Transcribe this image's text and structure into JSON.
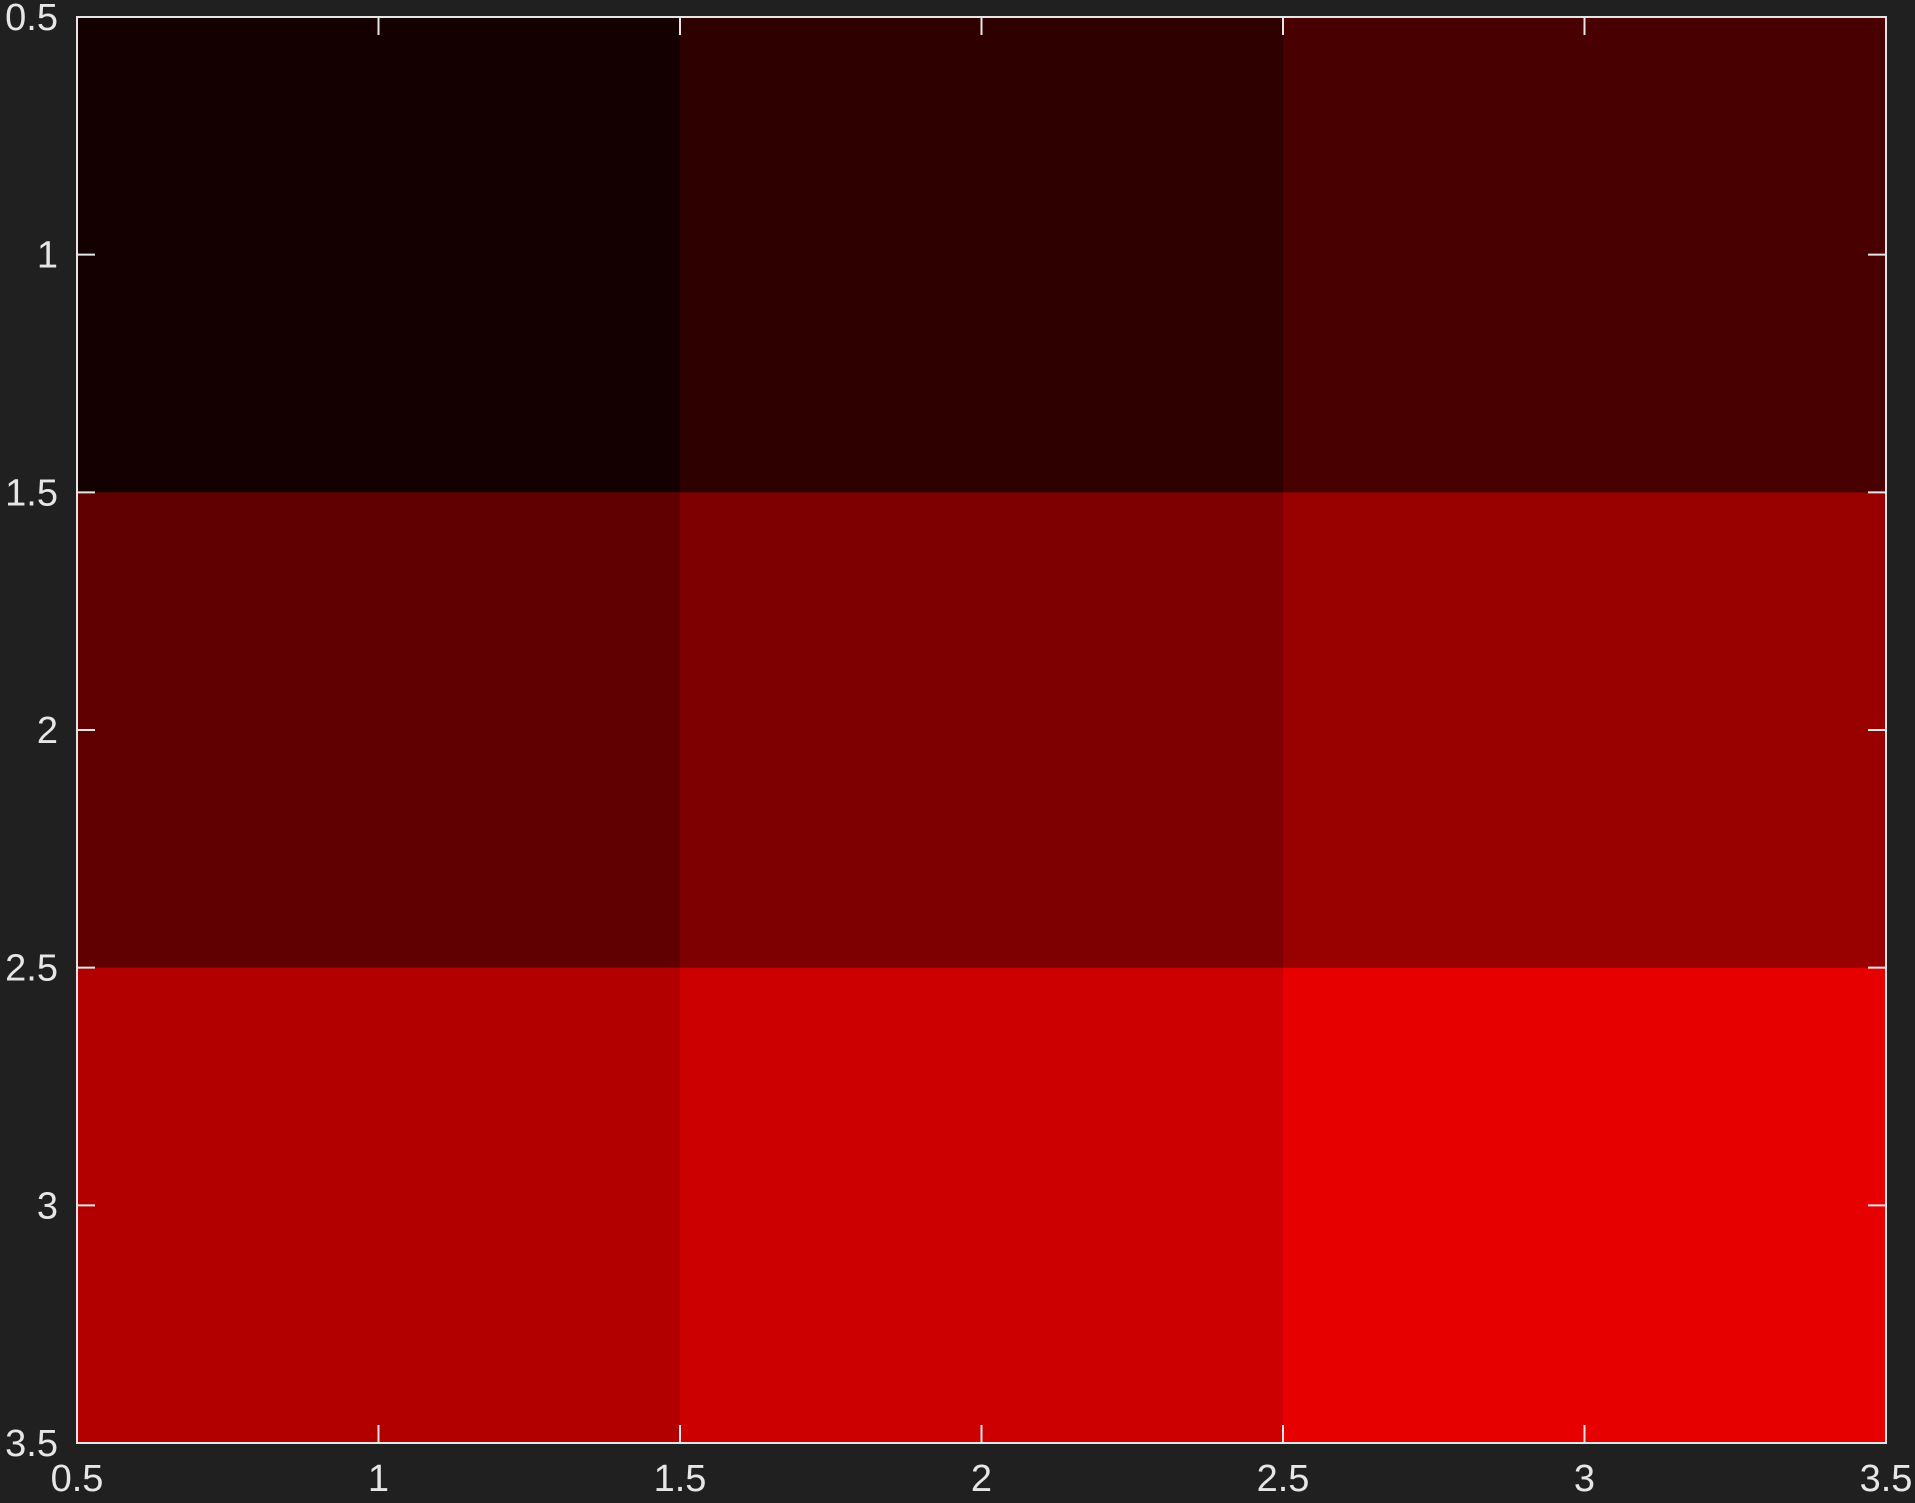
{
  "chart_data": {
    "type": "heatmap",
    "title": "",
    "xlabel": "",
    "ylabel": "",
    "x_centers": [
      1,
      2,
      3
    ],
    "y_centers": [
      1,
      2,
      3
    ],
    "xlim": [
      0.5,
      3.5
    ],
    "ylim": [
      0.5,
      3.5
    ],
    "y_direction": "top-to-bottom",
    "grid": false,
    "colormap": "black-to-red",
    "colors": {
      "background": "#202020",
      "axes": "#e6e6e6",
      "text": "#e6e6e6"
    },
    "cells": [
      [
        "#140000",
        "#2e0000",
        "#480000"
      ],
      [
        "#600000",
        "#7e0000",
        "#990000"
      ],
      [
        "#b20000",
        "#cc0000",
        "#e60000"
      ]
    ],
    "xticks": [
      "0.5",
      "1",
      "1.5",
      "2",
      "2.5",
      "3",
      "3.5"
    ],
    "yticks": [
      "0.5",
      "1",
      "1.5",
      "2",
      "2.5",
      "3",
      "3.5"
    ]
  }
}
